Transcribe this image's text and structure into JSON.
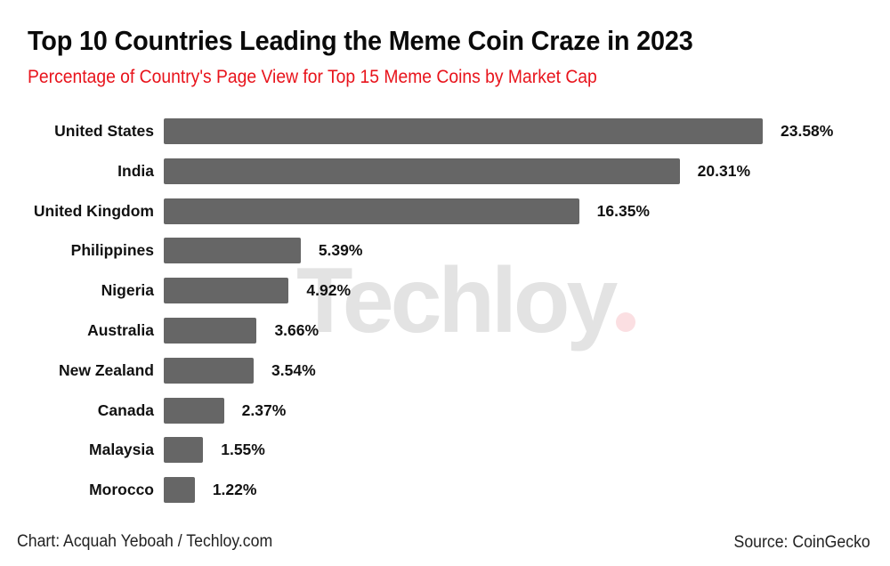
{
  "header": {
    "title": "Top 10 Countries Leading the Meme Coin Craze in 2023",
    "subtitle": "Percentage of Country's Page View for Top 15 Meme Coins by Market Cap"
  },
  "watermark": {
    "text": "Techloy",
    "dot_color": "#fbdfe2"
  },
  "footer": {
    "credit": "Chart: Acquah Yeboah / Techloy.com",
    "source": "Source: CoinGecko"
  },
  "colors": {
    "bar": "#666666",
    "subtitle": "#e8141c",
    "title": "#0a0a0a"
  },
  "rows": [
    {
      "label": "United States",
      "value": 23.58,
      "value_label": "23.58%"
    },
    {
      "label": "India",
      "value": 20.31,
      "value_label": "20.31%"
    },
    {
      "label": "United Kingdom",
      "value": 16.35,
      "value_label": "16.35%"
    },
    {
      "label": "Philippines",
      "value": 5.39,
      "value_label": "5.39%"
    },
    {
      "label": "Nigeria",
      "value": 4.92,
      "value_label": "4.92%"
    },
    {
      "label": "Australia",
      "value": 3.66,
      "value_label": "3.66%"
    },
    {
      "label": "New Zealand",
      "value": 3.54,
      "value_label": "3.54%"
    },
    {
      "label": "Canada",
      "value": 2.37,
      "value_label": "2.37%"
    },
    {
      "label": "Malaysia",
      "value": 1.55,
      "value_label": "1.55%"
    },
    {
      "label": "Morocco",
      "value": 1.22,
      "value_label": "1.22%"
    }
  ],
  "chart_data": {
    "type": "bar",
    "orientation": "horizontal",
    "title": "Top 10 Countries Leading the Meme Coin Craze in 2023",
    "subtitle": "Percentage of Country's Page View for Top 15 Meme Coins by Market Cap",
    "categories": [
      "United States",
      "India",
      "United Kingdom",
      "Philippines",
      "Nigeria",
      "Australia",
      "New Zealand",
      "Canada",
      "Malaysia",
      "Morocco"
    ],
    "values": [
      23.58,
      20.31,
      16.35,
      5.39,
      4.92,
      3.66,
      3.54,
      2.37,
      1.55,
      1.22
    ],
    "unit": "%",
    "xlabel": "",
    "ylabel": "",
    "data_labels": true,
    "grid": false,
    "legend": null,
    "annotations": [
      "Chart: Acquah Yeboah / Techloy.com",
      "Source: CoinGecko"
    ]
  }
}
